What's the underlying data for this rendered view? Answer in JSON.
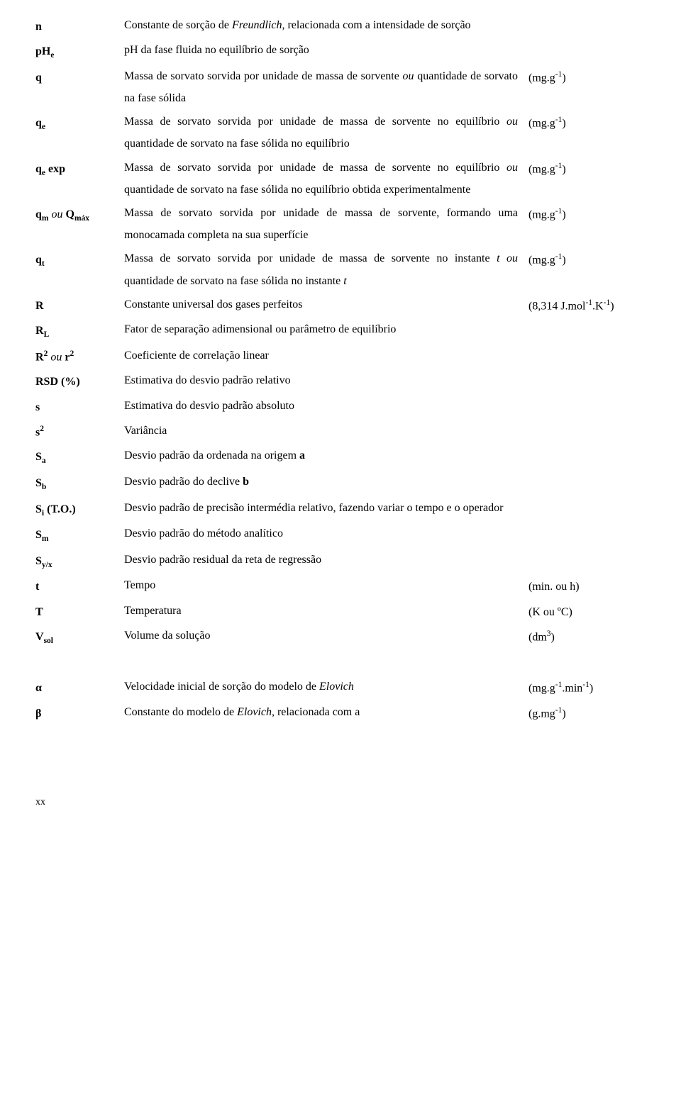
{
  "rows": [
    {
      "symbol": "n",
      "desc": "Constante de sorção de <span class='italic'>Freundlich</span>, relacionada com a intensidade de sorção",
      "unit": ""
    },
    {
      "symbol": "pH<span class='sub'>e</span>",
      "desc": "pH da fase fluida no equilíbrio de sorção",
      "unit": ""
    },
    {
      "symbol": "q",
      "desc": "Massa de sorvato sorvida por unidade de massa de sorvente <span class='italic'>ou</span> quantidade de sorvato na fase sólida",
      "unit": "(mg.g<span class='sup'>-1</span>)"
    },
    {
      "symbol": "q<span class='sub'>e</span>",
      "desc": "Massa de sorvato sorvida por unidade de massa de sorvente no equilíbrio <span class='italic'>ou</span> quantidade de sorvato na fase sólida no equilíbrio",
      "unit": "(mg.g<span class='sup'>-1</span>)"
    },
    {
      "symbol": "q<span class='sub'>e</span> exp",
      "desc": "Massa de sorvato sorvida por unidade de massa de sorvente no equilíbrio <span class='italic'>ou</span> quantidade de sorvato na fase sólida no equilíbrio obtida experimentalmente",
      "unit": "(mg.g<span class='sup'>-1</span>)"
    },
    {
      "symbol": "q<span class='sub'>m</span> <span class='italic' style='font-weight:normal'>ou</span> Q<span class='sub'>máx</span>",
      "desc": "Massa de sorvato sorvida por unidade de massa de sorvente, formando uma monocamada completa na sua superfície",
      "unit": "(mg.g<span class='sup'>-1</span>)"
    },
    {
      "symbol": "q<span class='sub'>t</span>",
      "desc": "Massa de sorvato sorvida por unidade de massa de sorvente no instante <span class='italic'>t ou</span> quantidade de sorvato na fase sólida no instante <span class='italic'>t</span>",
      "unit": "(mg.g<span class='sup'>-1</span>)"
    },
    {
      "symbol": "R",
      "desc": "Constante universal dos gases perfeitos",
      "unit": "(8,314 J.mol<span class='sup'>-1</span>.K<span class='sup'>-1</span>)"
    },
    {
      "symbol": "R<span class='sub'>L</span>",
      "desc": "Fator de separação adimensional ou parâmetro de equilíbrio",
      "unit": ""
    },
    {
      "symbol": "R<span class='sup'>2</span> <span class='italic' style='font-weight:normal'>ou</span> r<span class='sup'>2</span>",
      "desc": "Coeficiente de correlação linear",
      "unit": ""
    },
    {
      "symbol": "RSD (%)",
      "desc": "Estimativa do desvio padrão relativo",
      "unit": ""
    },
    {
      "symbol": "s",
      "desc": "Estimativa do desvio padrão absoluto",
      "unit": ""
    },
    {
      "symbol": "s<span class='sup'>2</span>",
      "desc": "Variância",
      "unit": ""
    },
    {
      "symbol": "S<span class='sub'>a</span>",
      "desc": "Desvio padrão da ordenada na origem <span class='bold'>a</span>",
      "unit": ""
    },
    {
      "symbol": "S<span class='sub'>b</span>",
      "desc": "Desvio padrão do declive <span class='bold'>b</span>",
      "unit": ""
    },
    {
      "symbol": "S<span class='sub'>i</span> (T.O.)",
      "desc": "Desvio padrão de precisão intermédia relativo, fazendo variar o tempo e o operador",
      "unit": ""
    },
    {
      "symbol": "S<span class='sub'>m</span>",
      "desc": "Desvio padrão do método analítico",
      "unit": ""
    },
    {
      "symbol": "S<span class='sub'>y/x</span>",
      "desc": "Desvio padrão residual da reta de regressão",
      "unit": ""
    },
    {
      "symbol": "t",
      "desc": "Tempo",
      "unit": "(min. ou h)"
    },
    {
      "symbol": "T",
      "desc": "Temperatura",
      "unit": "(K ou ºC)"
    },
    {
      "symbol": "V<span class='sub'>sol</span>",
      "desc": "Volume da solução",
      "unit": "(dm<span class='sup'>3</span>)"
    }
  ],
  "rows2": [
    {
      "symbol": "α",
      "desc": "Velocidade inicial de sorção do modelo de <span class='italic'>Elovich</span>",
      "unit": "(mg.g<span class='sup'>-1</span>.min<span class='sup'>-1</span>)"
    },
    {
      "symbol": "β",
      "desc": "Constante do modelo de <span class='italic'>Elovich</span>, relacionada com a",
      "unit": "(g.mg<span class='sup'>-1</span>)"
    }
  ],
  "footer": "xx"
}
